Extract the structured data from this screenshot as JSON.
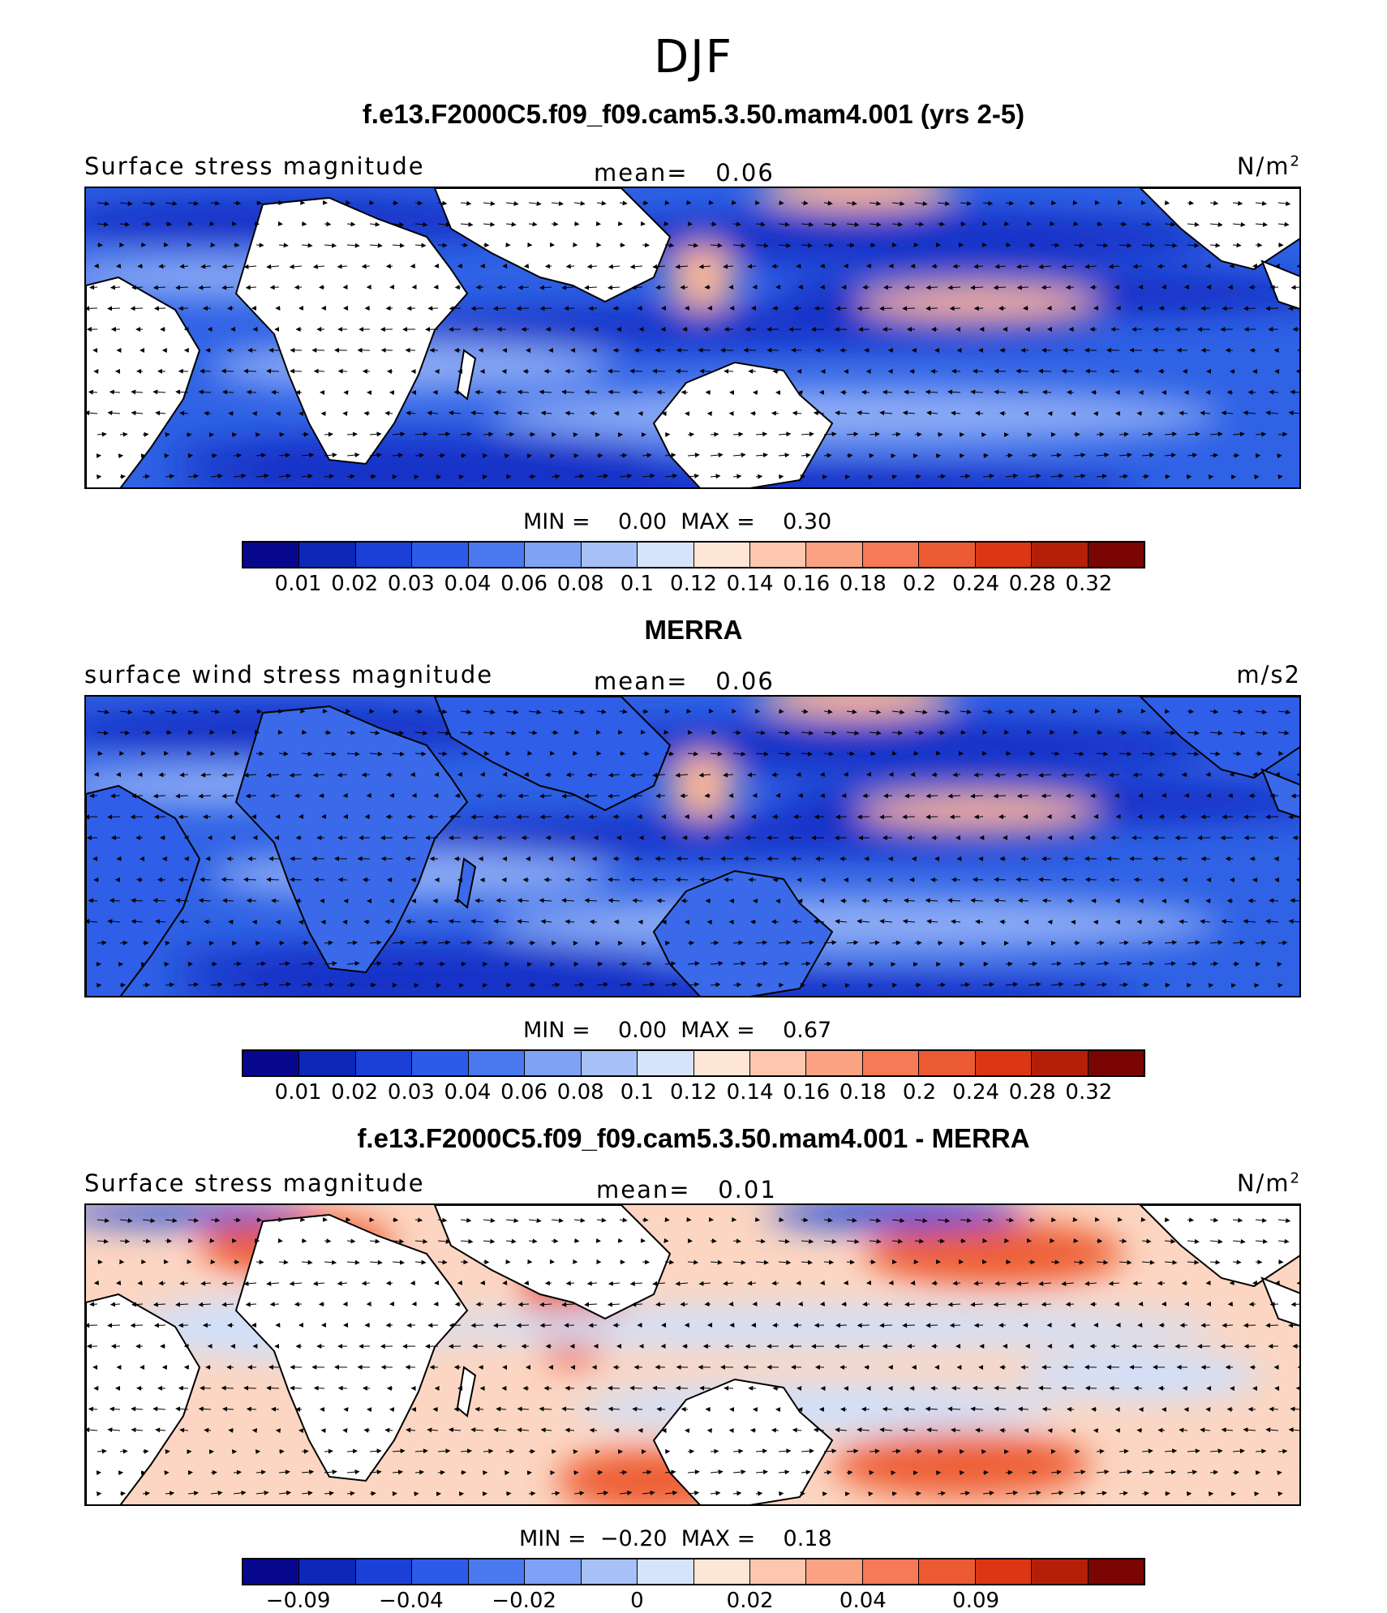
{
  "season": "DJF",
  "colors": [
    "#08088f",
    "#0d27b8",
    "#1a40d8",
    "#2c5be9",
    "#4a78ef",
    "#7ea2f5",
    "#a7c1f7",
    "#d5e4fb",
    "#fde6d5",
    "#fcc7ae",
    "#fba283",
    "#f57a55",
    "#ec5a33",
    "#db3713",
    "#b51f09",
    "#7a0503"
  ],
  "panels": [
    {
      "title": "f.e13.F2000C5.f09_f09.cam5.3.50.mam4.001 (yrs 2-5)",
      "left_label": "Surface stress magnitude",
      "mean_text": "mean=   0.06",
      "units_base": "N/m",
      "units_sup": "2",
      "minmax_text": "MIN =    0.00  MAX =    0.30",
      "ticks": [
        "0.01",
        "0.02",
        "0.03",
        "0.04",
        "0.06",
        "0.08",
        "0.1",
        "0.12",
        "0.14",
        "0.16",
        "0.18",
        "0.2",
        "0.24",
        "0.28",
        "0.32"
      ],
      "land_masked": true
    },
    {
      "title": "MERRA",
      "left_label": "surface wind stress magnitude",
      "mean_text": "mean=   0.06",
      "units_base": "m/s2",
      "units_sup": "",
      "minmax_text": "MIN =    0.00  MAX =    0.67",
      "ticks": [
        "0.01",
        "0.02",
        "0.03",
        "0.04",
        "0.06",
        "0.08",
        "0.1",
        "0.12",
        "0.14",
        "0.16",
        "0.18",
        "0.2",
        "0.24",
        "0.28",
        "0.32"
      ],
      "land_masked": false
    },
    {
      "title": "f.e13.F2000C5.f09_f09.cam5.3.50.mam4.001 - MERRA",
      "left_label": "Surface stress magnitude",
      "mean_text": "mean=   0.01",
      "units_base": "N/m",
      "units_sup": "2",
      "minmax_text": "MIN =  −0.20  MAX =    0.18",
      "ticks": [
        "−0.09",
        "",
        "−0.04",
        "",
        "−0.02",
        "",
        "0",
        "",
        "0.02",
        "",
        "0.04",
        "",
        "0.09",
        "",
        ""
      ],
      "land_masked": true
    }
  ]
}
